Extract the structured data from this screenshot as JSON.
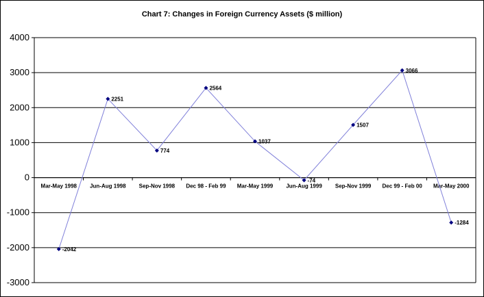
{
  "chart_data": {
    "type": "line",
    "title": "Chart 7: Changes in Foreign Currency Assets ($ million)",
    "xlabel": "",
    "ylabel": "",
    "categories": [
      "Mar-May 1998",
      "Jun-Aug 1998",
      "Sep-Nov 1998",
      "Dec 98 - Feb 99",
      "Mar-May 1999",
      "Jun-Aug 1999",
      "Sep-Nov 1999",
      "Dec 99 - Feb 00",
      "Mar-May 2000"
    ],
    "series": [
      {
        "values": [
          -2042,
          2251,
          774,
          2564,
          1037,
          -74,
          1507,
          3066,
          -1284
        ]
      }
    ],
    "data_labels": [
      "-2042",
      "2251",
      "774",
      "2564",
      "1037",
      "-74",
      "1507",
      "3066",
      "-1284"
    ],
    "ylim": [
      -3000,
      4000
    ],
    "yticks": [
      4000,
      3000,
      2000,
      1000,
      0,
      -1000,
      -2000,
      -3000
    ],
    "ytick_labels": [
      "4000",
      "3000",
      "2000",
      "1000",
      "0",
      "-1000",
      "-2000",
      "-3000"
    ],
    "grid": true,
    "legend": "none",
    "colors": {
      "line": "#7f7fd9",
      "marker": "#000080",
      "grid": "#000000"
    }
  }
}
